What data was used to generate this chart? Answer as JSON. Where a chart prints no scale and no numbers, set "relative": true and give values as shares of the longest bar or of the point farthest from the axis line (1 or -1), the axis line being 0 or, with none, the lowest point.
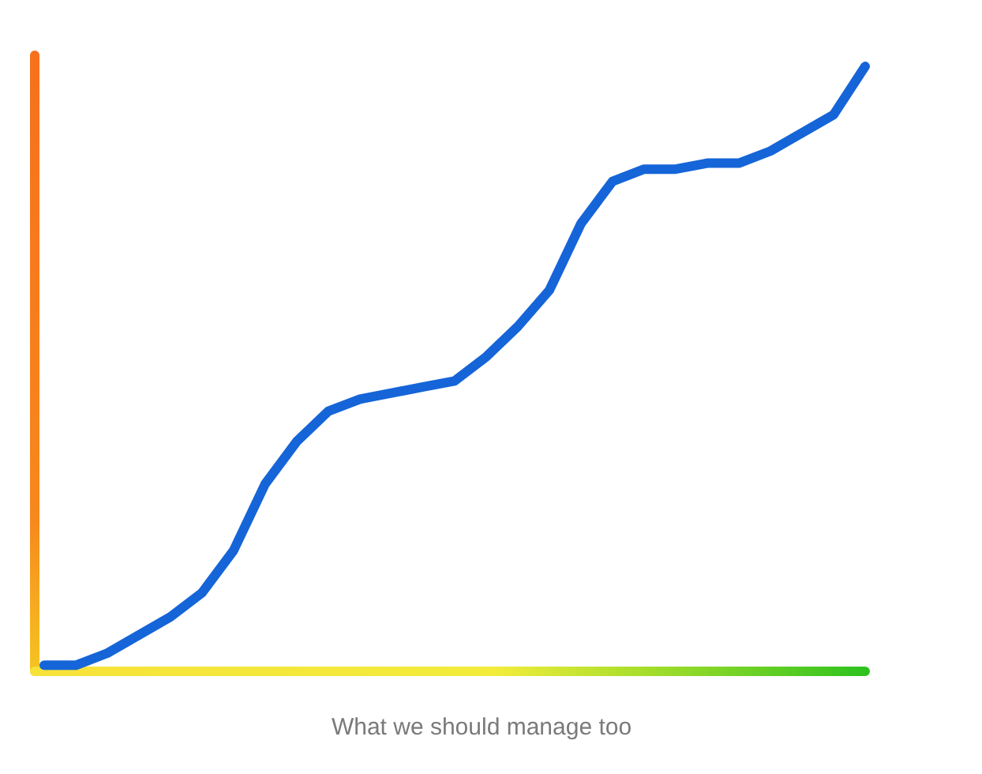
{
  "chart_data": {
    "type": "line",
    "relative": true,
    "xlabel": "What we should manage too",
    "categories": [
      null,
      null,
      null,
      null,
      null,
      null,
      null,
      null,
      null,
      null,
      null,
      null,
      null,
      null,
      null,
      null,
      null,
      null,
      null,
      null,
      null,
      null,
      null,
      null,
      null,
      null,
      null
    ],
    "series": [
      {
        "color": "#1565d8",
        "values": [
          0.01,
          0.01,
          0.03,
          0.06,
          0.09,
          0.13,
          0.2,
          0.31,
          0.38,
          0.43,
          0.45,
          0.46,
          0.47,
          0.48,
          0.52,
          0.57,
          0.63,
          0.74,
          0.81,
          0.83,
          0.83,
          0.84,
          0.84,
          0.86,
          0.89,
          0.92,
          1.0
        ]
      }
    ]
  }
}
